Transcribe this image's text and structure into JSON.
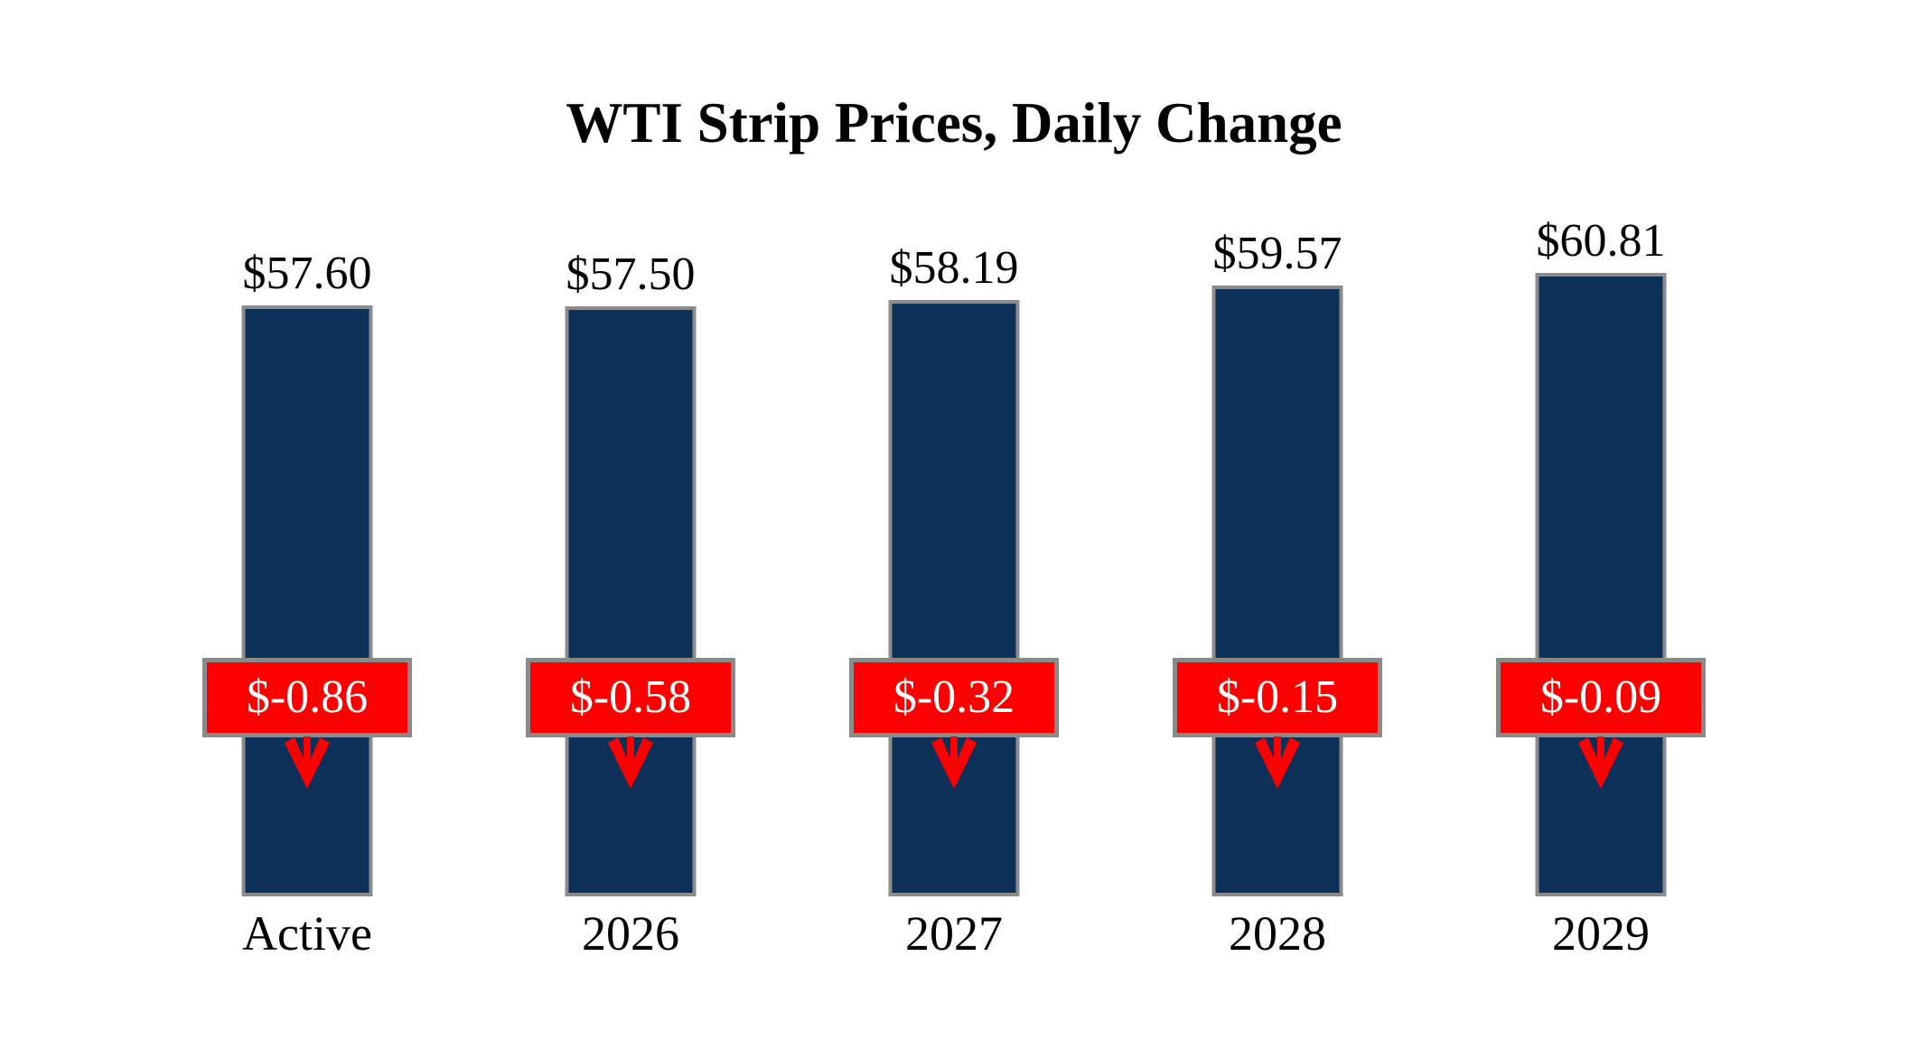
{
  "title": "WTI Strip Prices, Daily Change",
  "colors": {
    "background": "#ffffff",
    "bar": "#0d3058",
    "bar_border": "#8c8c8c",
    "change_box": "#ff0000",
    "change_box_border": "#8a8a8a",
    "change_text": "#ffffff",
    "arrow": "#ff0000",
    "label_text": "#000000"
  },
  "chart_data": {
    "type": "bar",
    "title": "WTI Strip Prices, Daily Change",
    "categories": [
      "Active",
      "2026",
      "2027",
      "2028",
      "2029"
    ],
    "series": [
      {
        "name": "WTI Strip Price",
        "values": [
          57.6,
          57.5,
          58.19,
          59.57,
          60.81
        ],
        "labels": [
          "$57.60",
          "$57.50",
          "$58.19",
          "$59.57",
          "$60.81"
        ]
      },
      {
        "name": "Daily Change",
        "values": [
          -0.86,
          -0.58,
          -0.32,
          -0.15,
          -0.09
        ],
        "labels": [
          "$-0.86",
          "$-0.58",
          "$-0.32",
          "$-0.15",
          "$-0.09"
        ]
      }
    ],
    "ylim": [
      0,
      65
    ],
    "grid": false,
    "legend": "none",
    "annotations": "red boxed daily-change values with down arrows overlaid on each bar"
  }
}
